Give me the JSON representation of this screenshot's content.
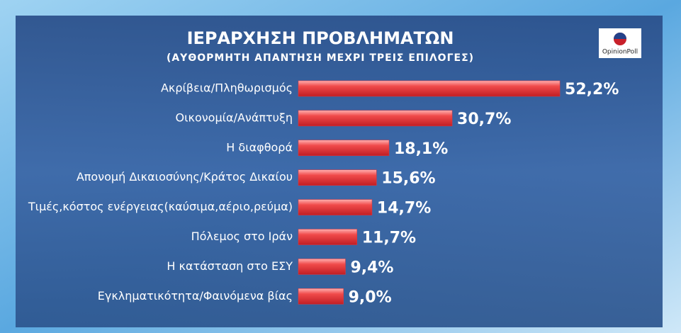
{
  "chart_data": {
    "type": "bar",
    "orientation": "horizontal",
    "title": "ΙΕΡΑΡΧΗΣΗ  ΠΡΟΒΛΗΜΑΤΩΝ",
    "subtitle": "(ΑΥΘΟΡΜΗΤΗ  ΑΠΑΝΤΗΣΗ  ΜΕΧΡΙ  ΤΡΕΙΣ  ΕΠΙΛΟΓΕΣ)",
    "logo": "OpinionPoll",
    "categories": [
      "Ακρίβεια/Πληθωρισμός",
      "Οικονομία/Ανάπτυξη",
      "Η  διαφθορά",
      "Απονομή  Δικαιοσύνης/Κράτος  Δικαίου",
      "Τιμές,κόστος  ενέργειας(καύσιμα,αέριο,ρεύμα)",
      "Πόλεμος  στο  Ιράν",
      "Η  κατάσταση  στο  ΕΣΥ",
      "Εγκληματικότητα/Φαινόμενα  βίας"
    ],
    "values": [
      52.2,
      30.7,
      18.1,
      15.6,
      14.7,
      11.7,
      9.4,
      9.0
    ],
    "value_labels": [
      "52,2%",
      "30,7%",
      "18,1%",
      "15,6%",
      "14,7%",
      "11,7%",
      "9,4%",
      "9,0%"
    ],
    "color": "#e8343a"
  }
}
